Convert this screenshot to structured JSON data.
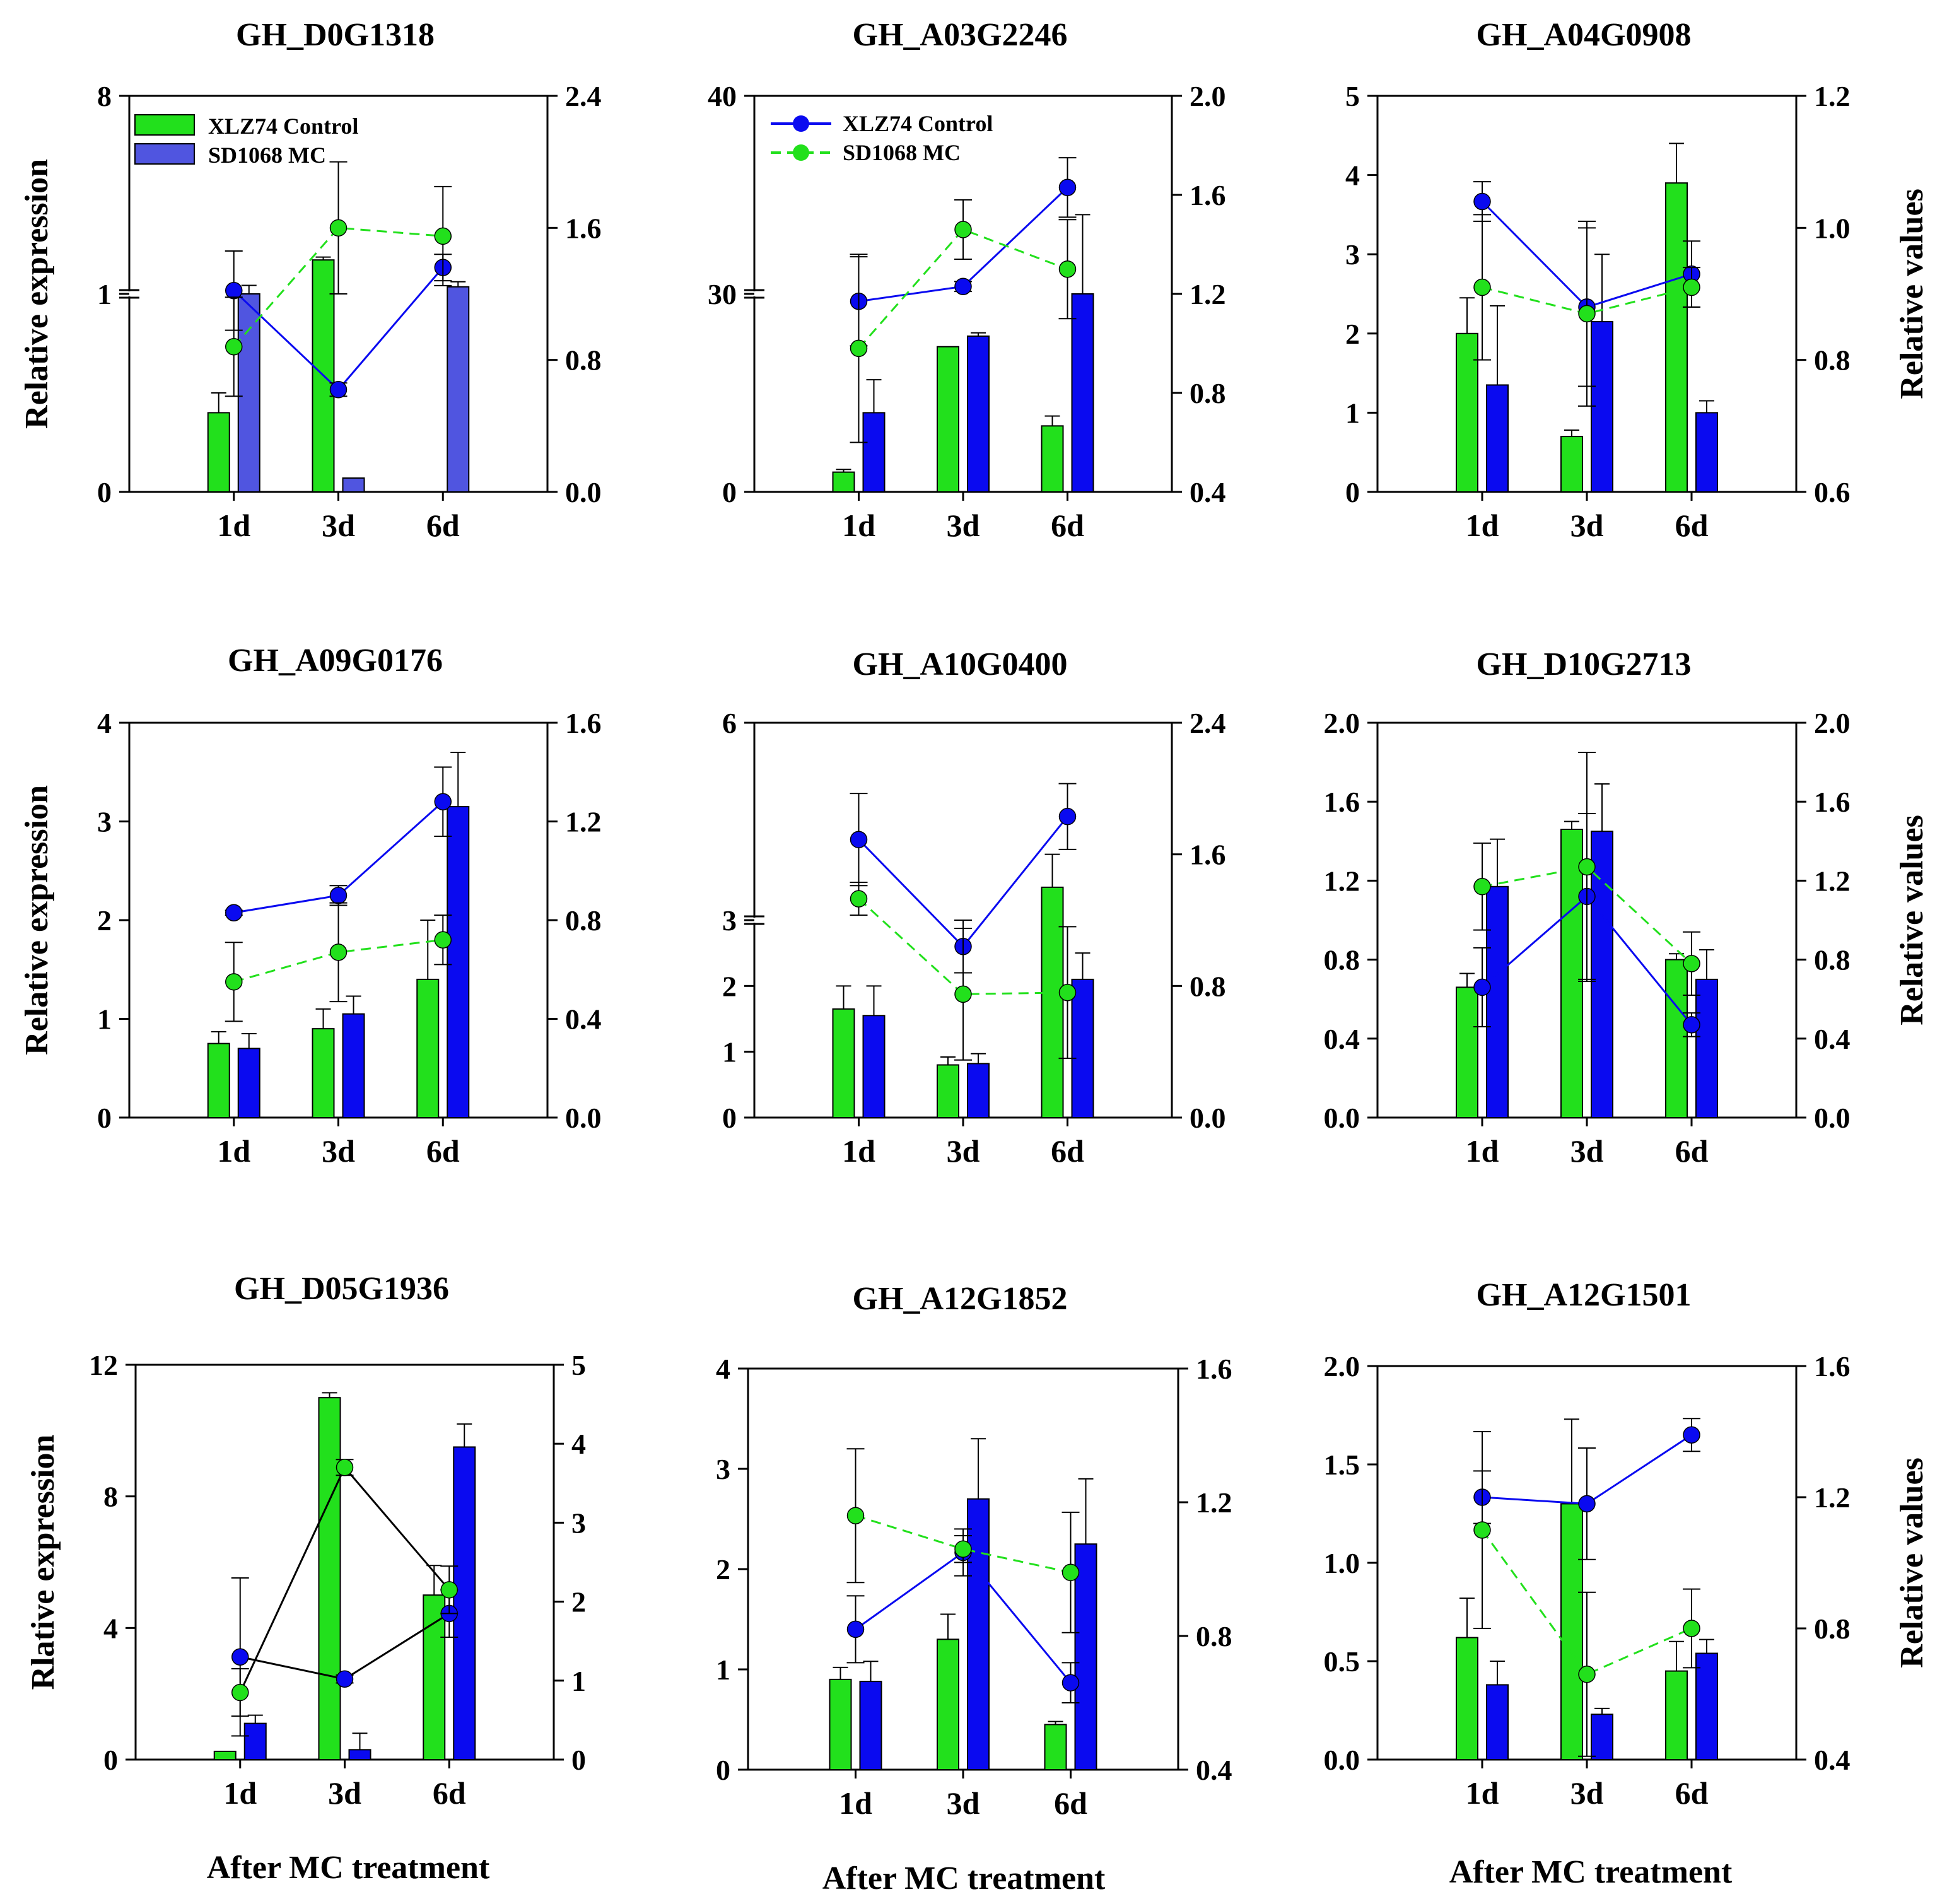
{
  "figure": {
    "x_axis_label": "After MC treatment",
    "categories": [
      "1d",
      "3d",
      "6d"
    ],
    "legend_bars": [
      "XLZ74 Control",
      "SD1068 MC"
    ],
    "legend_lines": [
      "XLZ74 Control",
      "SD1068 MC"
    ]
  },
  "colors": {
    "green": "#22e01c",
    "blue": "#0a0af0",
    "blue_light": "#5055e0",
    "line_dark": "#000000",
    "error_bar": "#000000"
  },
  "chart_data": [
    {
      "type": "bar+line",
      "title": "GH_D0G1318",
      "ylabel": "Relative expression",
      "y2label": "",
      "categories": [
        "1d",
        "3d",
        "6d"
      ],
      "ylim": [
        0,
        8
      ],
      "y_axis_break": true,
      "yticks": [
        0,
        1,
        8
      ],
      "y2lim": [
        0,
        2.4
      ],
      "y2ticks": [
        0.0,
        0.8,
        1.6,
        2.4
      ],
      "y2tick_labels": [
        "0.0",
        "0.8",
        "1.6",
        "2.4"
      ],
      "bar_style": "light",
      "line_style": "flipped",
      "legend": "bars",
      "bars": [
        {
          "name": "XLZ74 Control",
          "values": [
            0.4,
            2.2,
            0.0
          ],
          "errors": [
            0.1,
            0.1,
            0
          ]
        },
        {
          "name": "SD1068 MC",
          "values": [
            1.0,
            0.07,
            1.25
          ],
          "errors": [
            0.3,
            0.0,
            0.18
          ]
        }
      ],
      "lines": [
        {
          "name": "XLZ74 Control",
          "values": [
            1.22,
            0.62,
            1.36
          ],
          "errors": [
            0.24,
            0.04,
            0.08
          ]
        },
        {
          "name": "SD1068 MC",
          "values": [
            0.88,
            1.6,
            1.55
          ],
          "errors": [
            0.3,
            0.4,
            0.3
          ]
        }
      ]
    },
    {
      "type": "bar+line",
      "title": "GH_A03G2246",
      "ylabel": "",
      "y2label": "",
      "categories": [
        "1d",
        "3d",
        "6d"
      ],
      "ylim": [
        0,
        40
      ],
      "y_axis_break": true,
      "yticks": [
        0,
        30,
        40
      ],
      "y2lim": [
        0.4,
        2.0
      ],
      "y2ticks": [
        0.4,
        0.8,
        1.2,
        1.6,
        2.0
      ],
      "y2tick_labels": [
        "0.4",
        "0.8",
        "1.2",
        "1.6",
        "2.0"
      ],
      "bar_style": "normal",
      "line_style": "standard",
      "legend": "lines",
      "bars": [
        {
          "name": "XLZ74 Control",
          "values": [
            3,
            22,
            10
          ],
          "errors": [
            0.4,
            0,
            1.5
          ]
        },
        {
          "name": "SD1068 MC",
          "values": [
            12,
            23.6,
            30
          ],
          "errors": [
            5,
            0.5,
            4
          ]
        }
      ],
      "lines": [
        {
          "name": "XLZ74 Control",
          "values": [
            1.17,
            1.23,
            1.63
          ],
          "errors": [
            0.18,
            0.02,
            0.12
          ]
        },
        {
          "name": "SD1068 MC",
          "values": [
            0.98,
            1.46,
            1.3
          ],
          "errors": [
            0.38,
            0.12,
            0.2
          ]
        }
      ]
    },
    {
      "type": "bar+line",
      "title": "GH_A04G0908",
      "ylabel": "",
      "y2label": "Relative values",
      "categories": [
        "1d",
        "3d",
        "6d"
      ],
      "ylim": [
        0,
        5
      ],
      "yticks": [
        0,
        1,
        2,
        3,
        4,
        5
      ],
      "y2lim": [
        0.6,
        1.2
      ],
      "y2ticks": [
        0.6,
        0.8,
        1.0,
        1.2
      ],
      "y2tick_labels": [
        "0.6",
        "0.8",
        "1.0",
        "1.2"
      ],
      "bar_style": "normal",
      "line_style": "standard",
      "legend": "none",
      "bars": [
        {
          "name": "XLZ74 Control",
          "values": [
            2.0,
            0.7,
            3.9
          ],
          "errors": [
            0.45,
            0.08,
            0.5
          ]
        },
        {
          "name": "SD1068 MC",
          "values": [
            1.35,
            2.15,
            1.0
          ],
          "errors": [
            1.0,
            0.85,
            0.15
          ]
        }
      ],
      "lines": [
        {
          "name": "XLZ74 Control",
          "values": [
            1.04,
            0.88,
            0.93
          ],
          "errors": [
            0.03,
            0.12,
            0.05
          ]
        },
        {
          "name": "SD1068 MC",
          "values": [
            0.91,
            0.87,
            0.91
          ],
          "errors": [
            0.11,
            0.14,
            0.03
          ]
        }
      ]
    },
    {
      "type": "bar+line",
      "title": "GH_A09G0176",
      "ylabel": "Relative expression",
      "y2label": "",
      "categories": [
        "1d",
        "3d",
        "6d"
      ],
      "ylim": [
        0,
        4
      ],
      "yticks": [
        0,
        1,
        2,
        3,
        4
      ],
      "y2lim": [
        0,
        1.6
      ],
      "y2ticks": [
        0.0,
        0.4,
        0.8,
        1.2,
        1.6
      ],
      "y2tick_labels": [
        "0.0",
        "0.4",
        "0.8",
        "1.2",
        "1.6"
      ],
      "bar_style": "normal",
      "line_style": "standard",
      "legend": "none",
      "bars": [
        {
          "name": "XLZ74 Control",
          "values": [
            0.75,
            0.9,
            1.4
          ],
          "errors": [
            0.12,
            0.2,
            0.6
          ]
        },
        {
          "name": "SD1068 MC",
          "values": [
            0.7,
            1.05,
            3.15
          ],
          "errors": [
            0.15,
            0.18,
            0.55
          ]
        }
      ],
      "lines": [
        {
          "name": "XLZ74 Control",
          "values": [
            0.83,
            0.9,
            1.28
          ],
          "errors": [
            0.01,
            0.04,
            0.14
          ]
        },
        {
          "name": "SD1068 MC",
          "values": [
            0.55,
            0.67,
            0.72
          ],
          "errors": [
            0.16,
            0.2,
            0.1
          ]
        }
      ]
    },
    {
      "type": "bar+line",
      "title": "GH_A10G0400",
      "ylabel": "",
      "y2label": "",
      "categories": [
        "1d",
        "3d",
        "6d"
      ],
      "ylim": [
        0,
        6
      ],
      "y_axis_break": true,
      "yticks": [
        0,
        1,
        2,
        3,
        6
      ],
      "y2lim": [
        0,
        2.4
      ],
      "y2ticks": [
        0.0,
        0.8,
        1.6,
        2.4
      ],
      "y2tick_labels": [
        "0.0",
        "0.8",
        "1.6",
        "2.4"
      ],
      "bar_style": "normal",
      "line_style": "standard",
      "legend": "none",
      "bars": [
        {
          "name": "XLZ74 Control",
          "values": [
            1.65,
            0.8,
            3.5
          ],
          "errors": [
            0.35,
            0.12,
            0.5
          ]
        },
        {
          "name": "SD1068 MC",
          "values": [
            1.55,
            0.82,
            2.1
          ],
          "errors": [
            0.45,
            0.15,
            0.4
          ]
        }
      ],
      "lines": [
        {
          "name": "XLZ74 Control",
          "values": [
            1.69,
            1.04,
            1.83
          ],
          "errors": [
            0.28,
            0.16,
            0.2
          ]
        },
        {
          "name": "SD1068 MC",
          "values": [
            1.33,
            0.75,
            0.76
          ],
          "errors": [
            0.1,
            0.4,
            0.4
          ]
        }
      ]
    },
    {
      "type": "bar+line",
      "title": "GH_D10G2713",
      "ylabel": "",
      "y2label": "Relative values",
      "categories": [
        "1d",
        "3d",
        "6d"
      ],
      "ylim": [
        0,
        2.0
      ],
      "yticks": [
        0.0,
        0.4,
        0.8,
        1.2,
        1.6,
        2.0
      ],
      "ytick_labels": [
        "0.0",
        "0.4",
        "0.8",
        "1.2",
        "1.6",
        "2.0"
      ],
      "y2lim": [
        0,
        2.0
      ],
      "y2ticks": [
        0.0,
        0.4,
        0.8,
        1.2,
        1.6,
        2.0
      ],
      "y2tick_labels": [
        "0.0",
        "0.4",
        "0.8",
        "1.2",
        "1.6",
        "2.0"
      ],
      "bar_style": "normal",
      "line_style": "standard",
      "legend": "none",
      "bars": [
        {
          "name": "XLZ74 Control",
          "values": [
            0.66,
            1.46,
            0.8
          ],
          "errors": [
            0.07,
            0.04,
            0.03
          ]
        },
        {
          "name": "SD1068 MC",
          "values": [
            1.17,
            1.45,
            0.7
          ],
          "errors": [
            0.24,
            0.24,
            0.15
          ]
        }
      ],
      "lines": [
        {
          "name": "XLZ74 Control",
          "values": [
            0.66,
            1.12,
            0.47
          ],
          "errors": [
            0.2,
            0.42,
            0.06
          ]
        },
        {
          "name": "SD1068 MC",
          "values": [
            1.17,
            1.27,
            0.78
          ],
          "errors": [
            0.22,
            0.58,
            0.16
          ]
        }
      ]
    },
    {
      "type": "bar+line",
      "title": "GH_D05G1936",
      "ylabel": "Rlative expression",
      "y2label": "",
      "categories": [
        "1d",
        "3d",
        "6d"
      ],
      "ylim": [
        0,
        12
      ],
      "yticks": [
        0,
        4,
        8,
        12
      ],
      "y2lim": [
        0,
        5
      ],
      "y2ticks": [
        0,
        1,
        2,
        3,
        4,
        5
      ],
      "y2tick_labels": [
        "0",
        "1",
        "2",
        "3",
        "4",
        "5"
      ],
      "bar_style": "normal",
      "line_style": "black",
      "legend": "none",
      "bars": [
        {
          "name": "XLZ74 Control",
          "values": [
            0.25,
            11.0,
            5.0
          ],
          "errors": [
            0,
            0.15,
            0.9
          ]
        },
        {
          "name": "SD1068 MC",
          "values": [
            1.1,
            0.3,
            9.5
          ],
          "errors": [
            0.25,
            0.5,
            0.7
          ]
        }
      ],
      "lines": [
        {
          "name": "XLZ74 Control",
          "values": [
            1.3,
            1.02,
            1.85
          ],
          "errors": [
            1.0,
            0.05,
            0.3
          ]
        },
        {
          "name": "SD1068 MC",
          "values": [
            0.85,
            3.7,
            2.15
          ],
          "errors": [
            0.3,
            0.1,
            0.3
          ]
        }
      ]
    },
    {
      "type": "bar+line",
      "title": "GH_A12G1852",
      "ylabel": "",
      "y2label": "",
      "categories": [
        "1d",
        "3d",
        "6d"
      ],
      "ylim": [
        0,
        4
      ],
      "yticks": [
        0,
        1,
        2,
        3,
        4
      ],
      "y2lim": [
        0.4,
        1.6
      ],
      "y2ticks": [
        0.4,
        0.8,
        1.2,
        1.6
      ],
      "y2tick_labels": [
        "0.4",
        "0.8",
        "1.2",
        "1.6"
      ],
      "bar_style": "normal",
      "line_style": "standard",
      "legend": "none",
      "bars": [
        {
          "name": "XLZ74 Control",
          "values": [
            0.9,
            1.3,
            0.45
          ],
          "errors": [
            0.12,
            0.25,
            0.03
          ]
        },
        {
          "name": "SD1068 MC",
          "values": [
            0.88,
            2.7,
            2.25
          ],
          "errors": [
            0.2,
            0.6,
            0.65
          ]
        }
      ],
      "lines": [
        {
          "name": "XLZ74 Control",
          "values": [
            0.82,
            1.05,
            0.66
          ],
          "errors": [
            0.1,
            0.07,
            0.06
          ]
        },
        {
          "name": "SD1068 MC",
          "values": [
            1.16,
            1.06,
            0.99
          ],
          "errors": [
            0.2,
            0.04,
            0.18
          ]
        }
      ]
    },
    {
      "type": "bar+line",
      "title": "GH_A12G1501",
      "ylabel": "",
      "y2label": "Relative values",
      "categories": [
        "1d",
        "3d",
        "6d"
      ],
      "ylim": [
        0,
        2.0
      ],
      "yticks": [
        0.0,
        0.5,
        1.0,
        1.5,
        2.0
      ],
      "ytick_labels": [
        "0.0",
        "0.5",
        "1.0",
        "1.5",
        "2.0"
      ],
      "y2lim": [
        0.4,
        1.6
      ],
      "y2ticks": [
        0.4,
        0.8,
        1.2,
        1.6
      ],
      "y2tick_labels": [
        "0.4",
        "0.8",
        "1.2",
        "1.6"
      ],
      "bar_style": "normal",
      "line_style": "standard",
      "legend": "none",
      "bars": [
        {
          "name": "XLZ74 Control",
          "values": [
            0.62,
            1.3,
            0.45
          ],
          "errors": [
            0.2,
            0.43,
            0.15
          ]
        },
        {
          "name": "SD1068 MC",
          "values": [
            0.38,
            0.23,
            0.54
          ],
          "errors": [
            0.12,
            0.03,
            0.07
          ]
        }
      ],
      "lines": [
        {
          "name": "XLZ74 Control",
          "values": [
            1.2,
            1.18,
            1.39
          ],
          "errors": [
            0.08,
            0.17,
            0.05
          ]
        },
        {
          "name": "SD1068 MC",
          "values": [
            1.1,
            0.66,
            0.8
          ],
          "errors": [
            0.3,
            0.25,
            0.12
          ]
        }
      ]
    }
  ]
}
